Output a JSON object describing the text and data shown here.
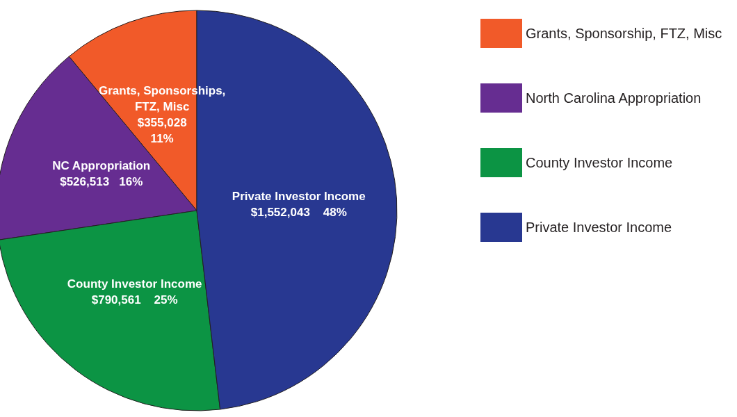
{
  "chart_data": {
    "type": "pie",
    "categories": [
      "Grants, Sponsorship, FTZ, Misc",
      "North Carolina Appropriation",
      "County Investor Income",
      "Private Investor Income"
    ],
    "values": [
      355028,
      526513,
      790561,
      1552043
    ],
    "colors": [
      "#f15a29",
      "#662d91",
      "#0c9444",
      "#283891"
    ],
    "value_labels": [
      "Grants, Sponsorships,\nFTZ, Misc\n$355,028\n11%",
      "NC Appropriation\n$526,513   16%",
      "County Investor Income\n$790,561    25%",
      "Private Investor Income\n$1,552,043    48%"
    ],
    "legend": "right"
  }
}
